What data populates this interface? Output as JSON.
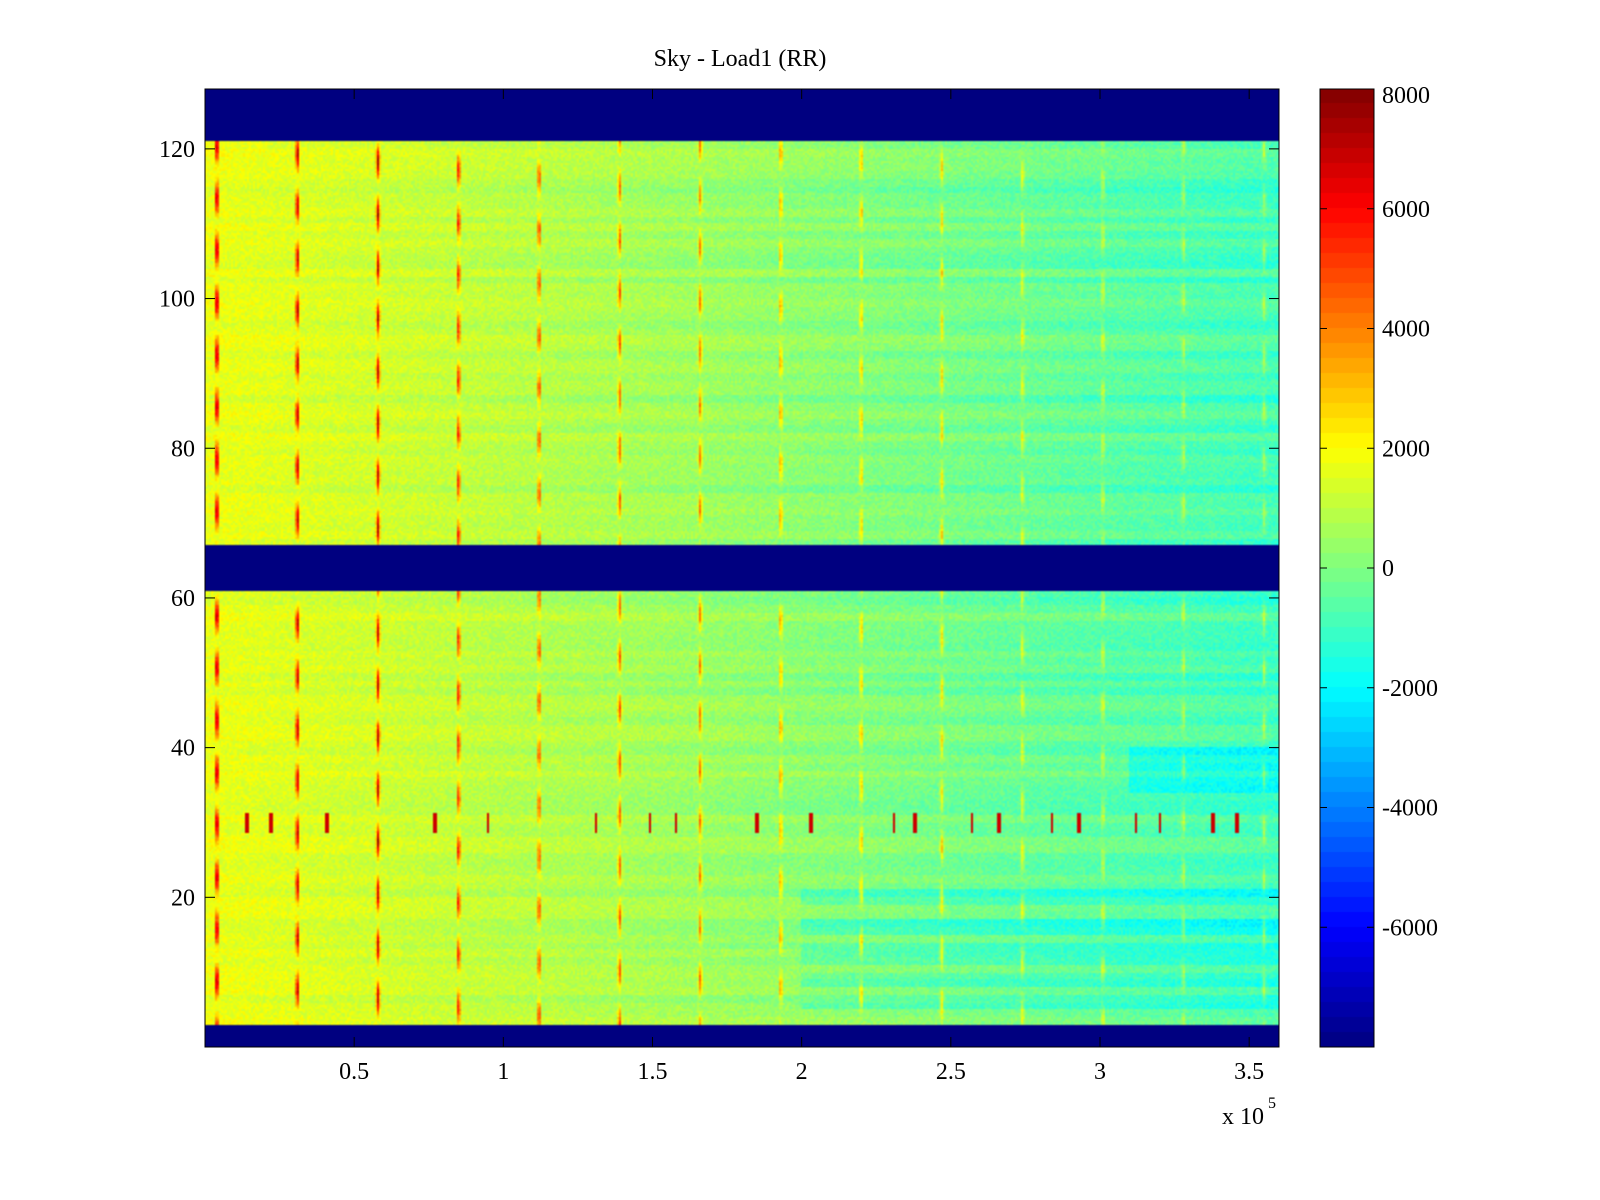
{
  "chart_data": {
    "type": "heatmap",
    "title": "Sky - Load1 (RR)",
    "xlabel": "",
    "ylabel": "",
    "x_multiplier_label": {
      "base": "x 10",
      "exponent": "5"
    },
    "xlim": [
      0,
      3.6
    ],
    "ylim": [
      0,
      128
    ],
    "xticks": [
      0.5,
      1,
      1.5,
      2,
      2.5,
      3,
      3.5
    ],
    "xtick_labels": [
      "0.5",
      "1",
      "1.5",
      "2",
      "2.5",
      "3",
      "3.5"
    ],
    "yticks": [
      20,
      40,
      60,
      80,
      100,
      120
    ],
    "ytick_labels": [
      "20",
      "40",
      "60",
      "80",
      "100",
      "120"
    ],
    "colorbar": {
      "colormap": "jet",
      "clim": [
        -8000,
        8000
      ],
      "ticks": [
        8000,
        6000,
        4000,
        2000,
        0,
        -2000,
        -4000,
        -6000
      ],
      "tick_labels": [
        "8000",
        "6000",
        "4000",
        "2000",
        "0",
        "-2000",
        "-4000",
        "-6000"
      ]
    },
    "blank_row_bands": [
      [
        0,
        3
      ],
      [
        61,
        67
      ],
      [
        121,
        128
      ]
    ],
    "background_trend": {
      "x_start": 0.0,
      "x_end": 3.6,
      "value_start": 1700,
      "value_end": -1000
    },
    "periodic_stripes_x": [
      0.04,
      0.31,
      0.58,
      0.85,
      1.12,
      1.39,
      1.66,
      1.93,
      2.2,
      2.47,
      2.74,
      3.01,
      3.28,
      3.55
    ],
    "stripe_strength": [
      7000,
      6500,
      6000,
      5500,
      5000,
      4500,
      4000,
      3600,
      3200,
      2800,
      2400,
      2200,
      2000,
      1800
    ],
    "glitch_row": 30,
    "glitch_x": [
      0.14,
      0.22,
      0.41,
      0.77,
      0.95,
      1.31,
      1.49,
      1.58,
      1.85,
      2.03,
      2.31,
      2.38,
      2.57,
      2.66,
      2.84,
      2.93,
      3.12,
      3.2,
      3.38,
      3.46
    ]
  }
}
